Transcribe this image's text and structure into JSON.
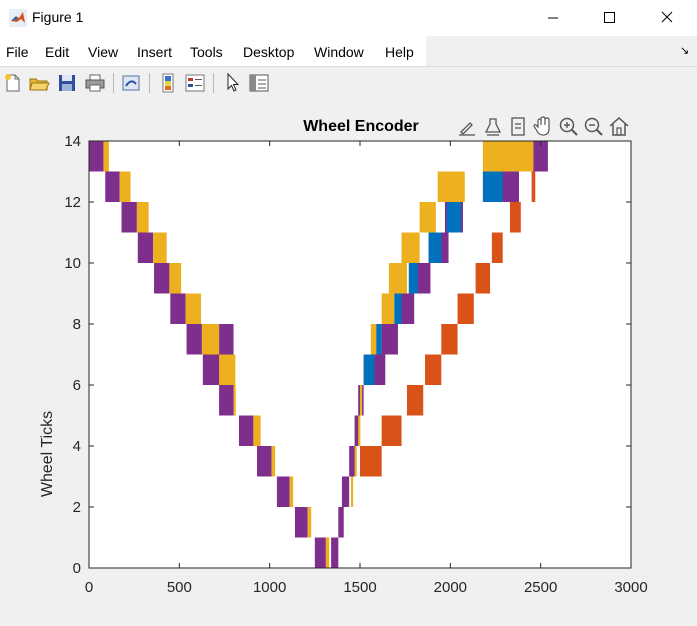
{
  "window": {
    "title": "Figure 1"
  },
  "menu": [
    "File",
    "Edit",
    "View",
    "Insert",
    "Tools",
    "Desktop",
    "Window",
    "Help"
  ],
  "toolbar_icons": [
    "new-figure-icon",
    "open-file-icon",
    "save-icon",
    "print-icon",
    "link-plot-icon",
    "insert-colorbar-icon",
    "insert-legend-icon",
    "edit-plot-icon",
    "property-inspector-icon"
  ],
  "axes_toolbar_icons": [
    "brush-icon",
    "data-tips-icon",
    "rotate-icon",
    "pan-icon",
    "zoom-in-icon",
    "zoom-out-icon",
    "home-icon"
  ],
  "colors": {
    "purple": "#7e2f8e",
    "yellow": "#edb120",
    "blue": "#0072bd",
    "orange": "#d95319"
  },
  "chart_data": {
    "type": "bar",
    "title": "Wheel Encoder",
    "xlabel": "",
    "ylabel": "Wheel Ticks",
    "xlim": [
      0,
      3000
    ],
    "ylim": [
      0,
      14
    ],
    "xticks": [
      "0",
      "500",
      "1000",
      "1500",
      "2000",
      "2500",
      "3000"
    ],
    "yticks": [
      "0",
      "2",
      "4",
      "6",
      "8",
      "10",
      "12",
      "14"
    ],
    "grid": false,
    "series": [
      {
        "color": "purple",
        "segments": [
          [
            0,
            13,
            14,
            80
          ],
          [
            90,
            12,
            13,
            170
          ],
          [
            180,
            11,
            12,
            265
          ],
          [
            270,
            10,
            11,
            355
          ],
          [
            360,
            9,
            10,
            445
          ],
          [
            450,
            8,
            9,
            535
          ],
          [
            540,
            7,
            8,
            625
          ],
          [
            630,
            6,
            7,
            720
          ],
          [
            720,
            5,
            8,
            800
          ],
          [
            830,
            4,
            5,
            910
          ],
          [
            930,
            3,
            4,
            1010
          ],
          [
            1040,
            2,
            3,
            1110
          ],
          [
            1140,
            1,
            2,
            1210
          ],
          [
            1250,
            0,
            1,
            1320
          ],
          [
            1340,
            0,
            1,
            1380
          ],
          [
            1380,
            1,
            2,
            1410
          ],
          [
            1400,
            2,
            3,
            1440
          ],
          [
            1440,
            3,
            4,
            1480
          ],
          [
            1470,
            4,
            5,
            1500
          ],
          [
            1490,
            5,
            6,
            1520
          ],
          [
            1530,
            6,
            7,
            1640
          ],
          [
            1620,
            7,
            8,
            1710
          ],
          [
            1700,
            8,
            9,
            1800
          ],
          [
            1800,
            9,
            10,
            1890
          ],
          [
            1880,
            10,
            11,
            1990
          ],
          [
            1970,
            11,
            12,
            2070
          ],
          [
            2280,
            12,
            13,
            2380
          ],
          [
            2450,
            13,
            14,
            2540
          ]
        ]
      },
      {
        "color": "yellow",
        "segments": [
          [
            80,
            13,
            14,
            110
          ],
          [
            170,
            12,
            13,
            230
          ],
          [
            265,
            11,
            12,
            330
          ],
          [
            355,
            10,
            11,
            430
          ],
          [
            445,
            9,
            10,
            510
          ],
          [
            535,
            8,
            9,
            620
          ],
          [
            625,
            7,
            8,
            720
          ],
          [
            720,
            6,
            7,
            810
          ],
          [
            800,
            5,
            6,
            810
          ],
          [
            910,
            4,
            5,
            950
          ],
          [
            1010,
            3,
            4,
            1030
          ],
          [
            1110,
            2,
            3,
            1130
          ],
          [
            1210,
            1,
            2,
            1230
          ],
          [
            1310,
            0,
            1,
            1330
          ],
          [
            1450,
            2,
            3,
            1450
          ],
          [
            1470,
            3,
            4,
            1480
          ],
          [
            1490,
            4,
            5,
            1500
          ],
          [
            1500,
            5,
            6,
            1500
          ],
          [
            1520,
            6,
            7,
            1530
          ],
          [
            1560,
            7,
            8,
            1590
          ],
          [
            1620,
            8,
            9,
            1690
          ],
          [
            1660,
            9,
            10,
            1760
          ],
          [
            1730,
            10,
            11,
            1830
          ],
          [
            1830,
            11,
            12,
            1920
          ],
          [
            1930,
            12,
            13,
            2080
          ],
          [
            2180,
            13,
            14,
            2460
          ]
        ]
      },
      {
        "color": "blue",
        "segments": [
          [
            1520,
            6,
            7,
            1580
          ],
          [
            1590,
            7,
            8,
            1620
          ],
          [
            1690,
            8,
            9,
            1730
          ],
          [
            1770,
            9,
            10,
            1820
          ],
          [
            1880,
            10,
            11,
            1950
          ],
          [
            1980,
            11,
            12,
            2060
          ],
          [
            2180,
            12,
            13,
            2290
          ]
        ]
      },
      {
        "color": "orange",
        "segments": [
          [
            1500,
            3,
            4,
            1620
          ],
          [
            1620,
            4,
            5,
            1730
          ],
          [
            1760,
            5,
            6,
            1850
          ],
          [
            1860,
            6,
            7,
            1950
          ],
          [
            1950,
            7,
            8,
            2040
          ],
          [
            2040,
            8,
            9,
            2130
          ],
          [
            2140,
            9,
            10,
            2220
          ],
          [
            2230,
            10,
            11,
            2290
          ],
          [
            2330,
            11,
            12,
            2390
          ],
          [
            2450,
            12,
            13,
            2470
          ]
        ]
      }
    ]
  }
}
